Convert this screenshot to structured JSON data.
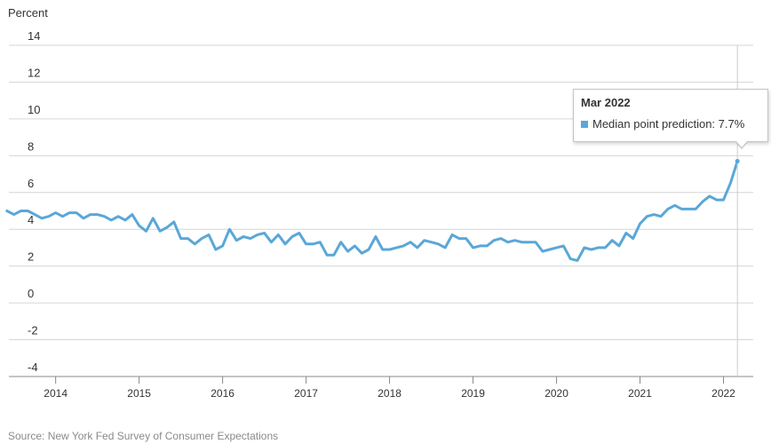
{
  "chart_data": {
    "type": "line",
    "ylabel": "Percent",
    "ylim": [
      -4,
      14
    ],
    "yticks": [
      14,
      12,
      10,
      8,
      6,
      4,
      2,
      0,
      -2,
      -4
    ],
    "xlim": [
      "2013-05-01",
      "2022-04-01"
    ],
    "xticks": [
      2014,
      2015,
      2016,
      2017,
      2018,
      2019,
      2020,
      2021,
      2022
    ],
    "grid": true,
    "source": "Source: New York Fed Survey of Consumer Expectations",
    "series": [
      {
        "name": "Median point prediction",
        "color": "#5aa7d8",
        "x": [
          "2013-06",
          "2013-07",
          "2013-08",
          "2013-09",
          "2013-10",
          "2013-11",
          "2013-12",
          "2014-01",
          "2014-02",
          "2014-03",
          "2014-04",
          "2014-05",
          "2014-06",
          "2014-07",
          "2014-08",
          "2014-09",
          "2014-10",
          "2014-11",
          "2014-12",
          "2015-01",
          "2015-02",
          "2015-03",
          "2015-04",
          "2015-05",
          "2015-06",
          "2015-07",
          "2015-08",
          "2015-09",
          "2015-10",
          "2015-11",
          "2015-12",
          "2016-01",
          "2016-02",
          "2016-03",
          "2016-04",
          "2016-05",
          "2016-06",
          "2016-07",
          "2016-08",
          "2016-09",
          "2016-10",
          "2016-11",
          "2016-12",
          "2017-01",
          "2017-02",
          "2017-03",
          "2017-04",
          "2017-05",
          "2017-06",
          "2017-07",
          "2017-08",
          "2017-09",
          "2017-10",
          "2017-11",
          "2017-12",
          "2018-01",
          "2018-02",
          "2018-03",
          "2018-04",
          "2018-05",
          "2018-06",
          "2018-07",
          "2018-08",
          "2018-09",
          "2018-10",
          "2018-11",
          "2018-12",
          "2019-01",
          "2019-02",
          "2019-03",
          "2019-04",
          "2019-05",
          "2019-06",
          "2019-07",
          "2019-08",
          "2019-09",
          "2019-10",
          "2019-11",
          "2019-12",
          "2020-01",
          "2020-02",
          "2020-03",
          "2020-04",
          "2020-05",
          "2020-06",
          "2020-07",
          "2020-08",
          "2020-09",
          "2020-10",
          "2020-11",
          "2020-12",
          "2021-01",
          "2021-02",
          "2021-03",
          "2021-04",
          "2021-05",
          "2021-06",
          "2021-07",
          "2021-08",
          "2021-09",
          "2021-10",
          "2021-11",
          "2021-12",
          "2022-01",
          "2022-02",
          "2022-03"
        ],
        "y": [
          5.0,
          4.8,
          5.0,
          5.0,
          4.8,
          4.6,
          4.7,
          4.9,
          4.7,
          4.9,
          4.9,
          4.6,
          4.8,
          4.8,
          4.7,
          4.5,
          4.7,
          4.5,
          4.8,
          4.2,
          3.9,
          4.6,
          3.9,
          4.1,
          4.4,
          3.5,
          3.5,
          3.2,
          3.5,
          3.7,
          2.9,
          3.1,
          4.0,
          3.4,
          3.6,
          3.5,
          3.7,
          3.8,
          3.3,
          3.7,
          3.2,
          3.6,
          3.8,
          3.2,
          3.2,
          3.3,
          2.6,
          2.6,
          3.3,
          2.8,
          3.1,
          2.7,
          2.9,
          3.6,
          2.9,
          2.9,
          3.0,
          3.1,
          3.3,
          3.0,
          3.4,
          3.3,
          3.2,
          3.0,
          3.7,
          3.5,
          3.5,
          3.0,
          3.1,
          3.1,
          3.4,
          3.5,
          3.3,
          3.4,
          3.3,
          3.3,
          3.3,
          2.8,
          2.9,
          3.0,
          3.1,
          2.4,
          2.3,
          3.0,
          2.9,
          3.0,
          3.0,
          3.4,
          3.1,
          3.8,
          3.5,
          4.3,
          4.7,
          4.8,
          4.7,
          5.1,
          5.3,
          5.1,
          5.1,
          5.1,
          5.5,
          5.8,
          5.6,
          5.6,
          6.5,
          7.7
        ]
      }
    ],
    "tooltip": {
      "title": "Mar 2022",
      "label": "Median point prediction: 7.7%",
      "point_x": "2022-03",
      "point_y": 7.7
    }
  }
}
